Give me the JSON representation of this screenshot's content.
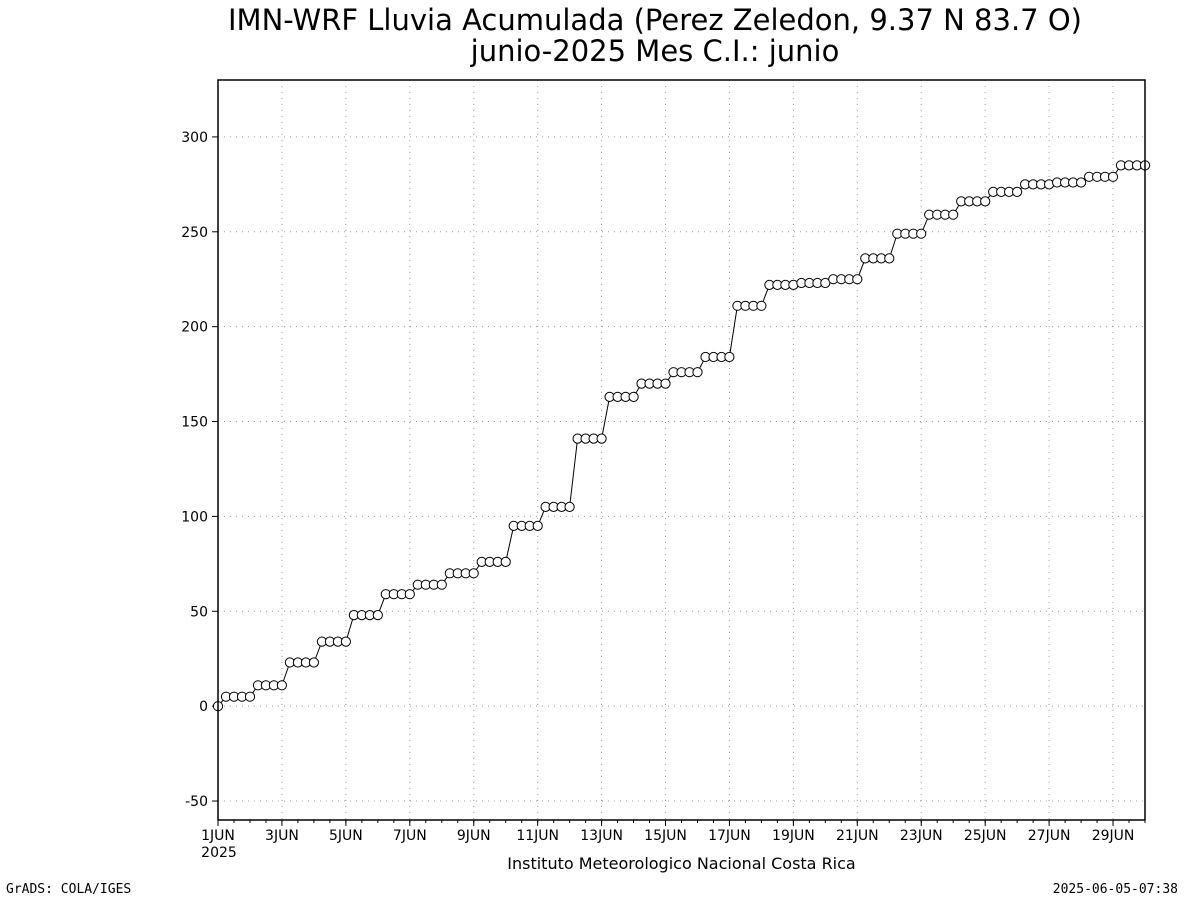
{
  "header": {
    "title_line1": "IMN-WRF  Lluvia Acumulada (Perez Zeledon, 9.37  N 83.7  O)",
    "title_line2": "junio-2025 Mes C.I.: junio"
  },
  "footer": {
    "left": "GrADS: COLA/IGES",
    "right": "2025-06-05-07:38"
  },
  "chart_data": {
    "type": "line",
    "title": "IMN-WRF  Lluvia Acumulada (Perez Zeledon, 9.37  N 83.7  O)",
    "subtitle": "junio-2025 Mes C.I.: junio",
    "xlabel": "Instituto Meteorologico Nacional Costa Rica",
    "ylabel": "",
    "year_label": "2025",
    "xlim": [
      1,
      30
    ],
    "ylim": [
      -60,
      330
    ],
    "yticks": [
      -50,
      0,
      50,
      100,
      150,
      200,
      250,
      300
    ],
    "xticks": [
      {
        "day": 1,
        "label": "1JUN"
      },
      {
        "day": 3,
        "label": "3JUN"
      },
      {
        "day": 5,
        "label": "5JUN"
      },
      {
        "day": 7,
        "label": "7JUN"
      },
      {
        "day": 9,
        "label": "9JUN"
      },
      {
        "day": 11,
        "label": "11JUN"
      },
      {
        "day": 13,
        "label": "13JUN"
      },
      {
        "day": 15,
        "label": "15JUN"
      },
      {
        "day": 17,
        "label": "17JUN"
      },
      {
        "day": 19,
        "label": "19JUN"
      },
      {
        "day": 21,
        "label": "21JUN"
      },
      {
        "day": 23,
        "label": "23JUN"
      },
      {
        "day": 25,
        "label": "25JUN"
      },
      {
        "day": 27,
        "label": "27JUN"
      },
      {
        "day": 29,
        "label": "29JUN"
      }
    ],
    "grid": true,
    "marker": "open-circle",
    "series_color": "#000000",
    "steps_per_day": 4,
    "daily_levels": [
      5,
      11,
      23,
      34,
      48,
      59,
      64,
      70,
      76,
      95,
      105,
      141,
      163,
      170,
      176,
      184,
      211,
      222,
      223,
      225,
      236,
      249,
      259,
      266,
      271,
      275,
      276,
      279,
      285
    ],
    "series": [
      {
        "values": [
          0,
          5,
          5,
          5,
          5,
          11,
          11,
          11,
          11,
          23,
          23,
          23,
          23,
          34,
          34,
          34,
          34,
          48,
          48,
          48,
          48,
          59,
          59,
          59,
          59,
          64,
          64,
          64,
          64,
          70,
          70,
          70,
          70,
          76,
          76,
          76,
          76,
          95,
          95,
          95,
          95,
          105,
          105,
          105,
          105,
          141,
          141,
          141,
          141,
          163,
          163,
          163,
          163,
          170,
          170,
          170,
          170,
          176,
          176,
          176,
          176,
          184,
          184,
          184,
          184,
          211,
          211,
          211,
          211,
          222,
          222,
          222,
          222,
          223,
          223,
          223,
          223,
          225,
          225,
          225,
          225,
          236,
          236,
          236,
          236,
          249,
          249,
          249,
          249,
          259,
          259,
          259,
          259,
          266,
          266,
          266,
          266,
          271,
          271,
          271,
          271,
          275,
          275,
          275,
          275,
          276,
          276,
          276,
          276,
          279,
          279,
          279,
          279,
          285,
          285,
          285,
          285
        ]
      }
    ]
  }
}
